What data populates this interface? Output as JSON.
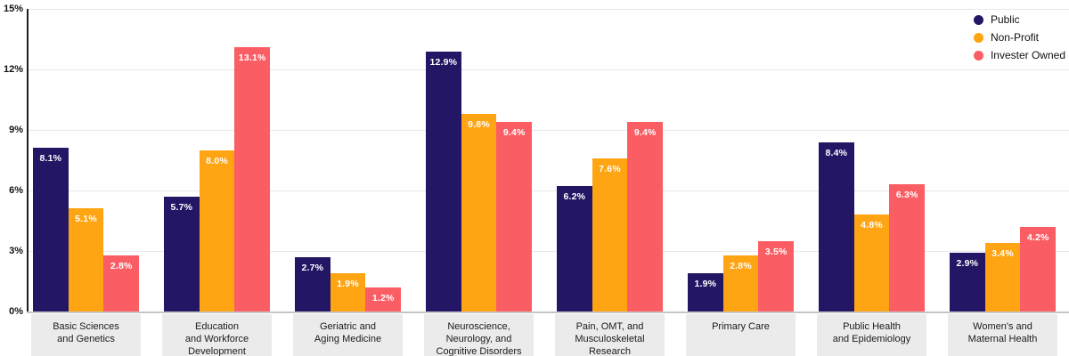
{
  "chart_data": {
    "type": "bar",
    "title": "",
    "xlabel": "",
    "ylabel": "",
    "ylim": [
      0,
      15
    ],
    "grid": true,
    "legend_position": "top-right",
    "y_ticks": [
      "0%",
      "3%",
      "6%",
      "9%",
      "12%",
      "15%"
    ],
    "categories": [
      [
        "Basic Sciences",
        "and Genetics"
      ],
      [
        "Education",
        "and Workforce",
        "Development"
      ],
      [
        "Geriatric and",
        "Aging Medicine"
      ],
      [
        "Neuroscience,",
        "Neurology, and",
        "Cognitive Disorders"
      ],
      [
        "Pain, OMT, and",
        "Musculoskeletal",
        "Research"
      ],
      [
        "Primary Care"
      ],
      [
        "Public Health",
        "and Epidemiology"
      ],
      [
        "Women's and",
        "Maternal Health"
      ]
    ],
    "series": [
      {
        "name": "Public",
        "color": "#231765",
        "values": [
          8.1,
          5.7,
          2.7,
          12.9,
          6.2,
          1.9,
          8.4,
          2.9
        ]
      },
      {
        "name": "Non-Profit",
        "color": "#FFA412",
        "values": [
          5.1,
          8.0,
          1.9,
          9.8,
          7.6,
          2.8,
          4.8,
          3.4
        ]
      },
      {
        "name": "Invester Owned",
        "color": "#FB5D64",
        "values": [
          2.8,
          13.1,
          1.2,
          9.4,
          9.4,
          3.5,
          6.3,
          4.2
        ]
      }
    ],
    "value_labels": [
      [
        "8.1%",
        "5.7%",
        "2.7%",
        "12.9%",
        "6.2%",
        "1.9%",
        "8.4%",
        "2.9%"
      ],
      [
        "5.1%",
        "8.0%",
        "1.9%",
        "9.8%",
        "7.6%",
        "2.8%",
        "4.8%",
        "3.4%"
      ],
      [
        "2.8%",
        "13.1%",
        "1.2%",
        "9.4%",
        "9.4%",
        "3.5%",
        "6.3%",
        "4.2%"
      ]
    ]
  },
  "colors": {
    "grid_line": "#E8E8E8",
    "zero_axis_line": "#C6C6C6",
    "y_axis_line": "#1F1F1F",
    "category_band": "#EBEBEB",
    "bar_value_text": "#FFFFFF",
    "tick_text": "#121212",
    "category_text": "#1B1B1B"
  }
}
